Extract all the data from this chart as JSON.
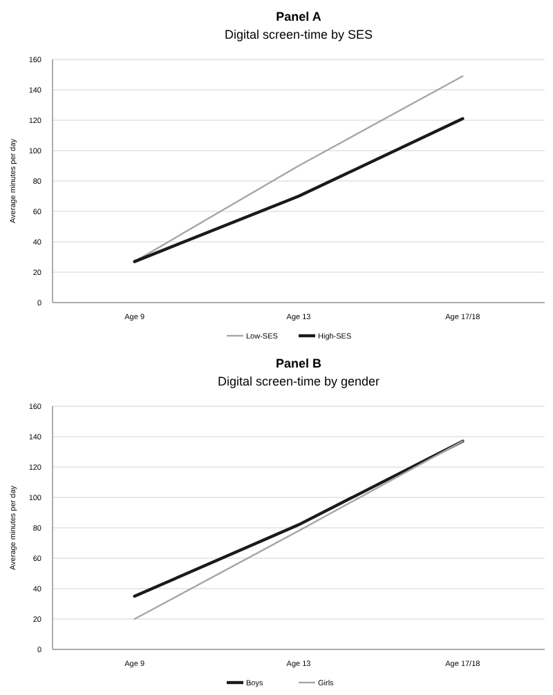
{
  "chart_data": [
    {
      "type": "line",
      "title": "Panel A",
      "subtitle": "Digital screen-time by SES",
      "ylabel": "Average minutes per day",
      "categories": [
        "Age 9",
        "Age 13",
        "Age 17/18"
      ],
      "series": [
        {
          "name": "Low-SES",
          "color": "#a6a6a6",
          "values": [
            27,
            90,
            149
          ]
        },
        {
          "name": "High-SES",
          "color": "#1a1a1a",
          "values": [
            27,
            70,
            121
          ]
        }
      ],
      "ylim": [
        0,
        160
      ],
      "yticks": [
        0,
        20,
        40,
        60,
        80,
        100,
        120,
        140,
        160
      ],
      "grid": "y",
      "legend": "bottom",
      "marker": "none"
    },
    {
      "type": "line",
      "title": "Panel B",
      "subtitle": "Digital screen-time by gender",
      "ylabel": "Average minutes per day",
      "categories": [
        "Age 9",
        "Age 13",
        "Age 17/18"
      ],
      "series": [
        {
          "name": "Boys",
          "color": "#1a1a1a",
          "values": [
            35,
            82,
            137
          ]
        },
        {
          "name": "Girls",
          "color": "#a6a6a6",
          "values": [
            20,
            78,
            137
          ]
        }
      ],
      "ylim": [
        0,
        160
      ],
      "yticks": [
        0,
        20,
        40,
        60,
        80,
        100,
        120,
        140,
        160
      ],
      "grid": "y",
      "legend": "bottom",
      "marker": "none"
    }
  ]
}
